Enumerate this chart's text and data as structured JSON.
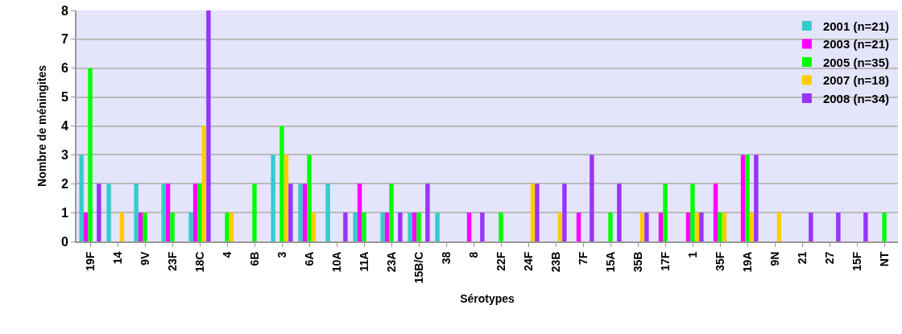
{
  "chart_data": {
    "type": "bar",
    "xlabel": "Sérotypes",
    "ylabel": "Nombre de méningites",
    "categories": [
      "19F",
      "14",
      "9V",
      "23F",
      "18C",
      "4",
      "6B",
      "3",
      "6A",
      "10A",
      "11A",
      "23A",
      "15B/C",
      "38",
      "8",
      "22F",
      "24F",
      "23B",
      "7F",
      "15A",
      "35B",
      "17F",
      "1",
      "35F",
      "19A",
      "9N",
      "21",
      "27",
      "15F",
      "NT"
    ],
    "series": [
      {
        "name": "2001 (n=21)",
        "color": "#33cccc",
        "values": [
          3,
          2,
          2,
          2,
          1,
          0,
          0,
          3,
          2,
          2,
          1,
          1,
          1,
          1,
          0,
          0,
          0,
          0,
          0,
          0,
          0,
          0,
          0,
          0,
          0,
          0,
          0,
          0,
          0,
          0
        ]
      },
      {
        "name": "2003 (n=21)",
        "color": "#ff00ff",
        "values": [
          1,
          0,
          1,
          2,
          2,
          0,
          0,
          0,
          2,
          0,
          2,
          1,
          1,
          0,
          1,
          0,
          0,
          0,
          1,
          0,
          0,
          1,
          1,
          2,
          3,
          0,
          0,
          0,
          0,
          0
        ]
      },
      {
        "name": "2005 (n=35)",
        "color": "#00ff00",
        "values": [
          6,
          0,
          1,
          1,
          2,
          1,
          2,
          4,
          3,
          0,
          1,
          2,
          1,
          0,
          0,
          1,
          0,
          0,
          0,
          1,
          0,
          2,
          2,
          1,
          3,
          0,
          0,
          0,
          0,
          1
        ]
      },
      {
        "name": "2007 (n=18)",
        "color": "#ffcc00",
        "values": [
          0,
          1,
          0,
          0,
          4,
          1,
          0,
          3,
          1,
          0,
          0,
          0,
          0,
          0,
          0,
          0,
          2,
          1,
          0,
          0,
          1,
          0,
          1,
          1,
          1,
          1,
          0,
          0,
          0,
          0
        ]
      },
      {
        "name": "2008 (n=34)",
        "color": "#9933ff",
        "values": [
          2,
          0,
          0,
          0,
          8,
          0,
          0,
          2,
          0,
          1,
          0,
          1,
          2,
          0,
          1,
          0,
          2,
          2,
          3,
          2,
          1,
          0,
          1,
          0,
          3,
          0,
          1,
          1,
          1,
          0
        ]
      }
    ],
    "ylim": [
      0,
      8
    ],
    "yticks": [
      0,
      1,
      2,
      3,
      4,
      5,
      6,
      7,
      8
    ],
    "grid": "y",
    "legend": "top right"
  }
}
